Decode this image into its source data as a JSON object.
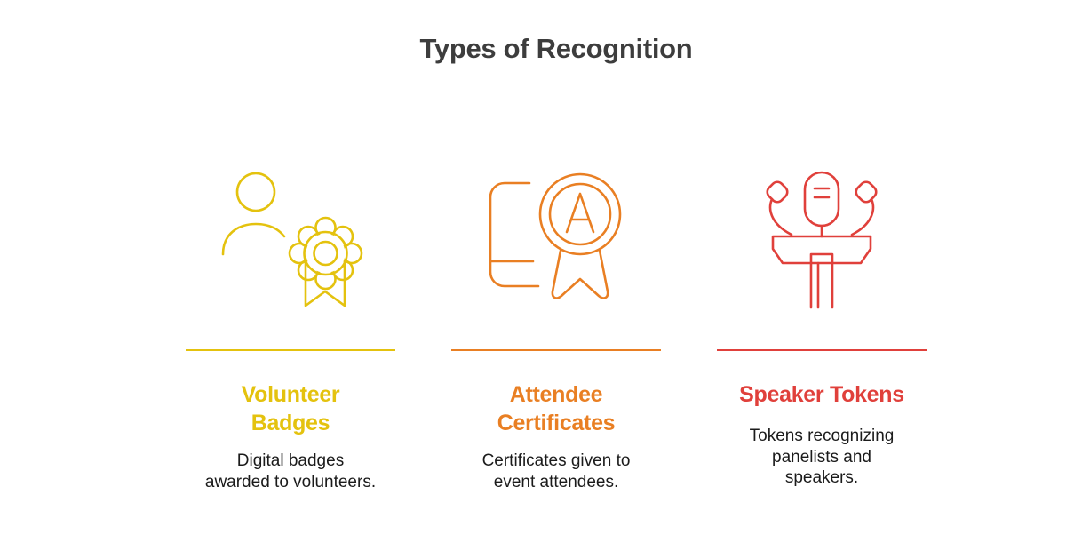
{
  "title": "Types of Recognition",
  "colors": {
    "title": "#3d3d3d",
    "text": "#1b1b1b",
    "yellow": "#e4c20e",
    "orange": "#e97f23",
    "red": "#e0403b"
  },
  "items": [
    {
      "icon": "volunteer-badge-icon",
      "color": "#e4c20e",
      "heading": [
        "Volunteer",
        "Badges"
      ],
      "description": [
        "Digital badges",
        "awarded to volunteers."
      ]
    },
    {
      "icon": "certificate-ribbon-icon",
      "color": "#e97f23",
      "heading": [
        "Attendee",
        "Certificates"
      ],
      "description": [
        "Certificates given to",
        "event attendees."
      ]
    },
    {
      "icon": "speaker-podium-icon",
      "color": "#e0403b",
      "heading": [
        "Speaker Tokens"
      ],
      "description": [
        "Tokens recognizing",
        "panelists and",
        "speakers."
      ]
    }
  ]
}
